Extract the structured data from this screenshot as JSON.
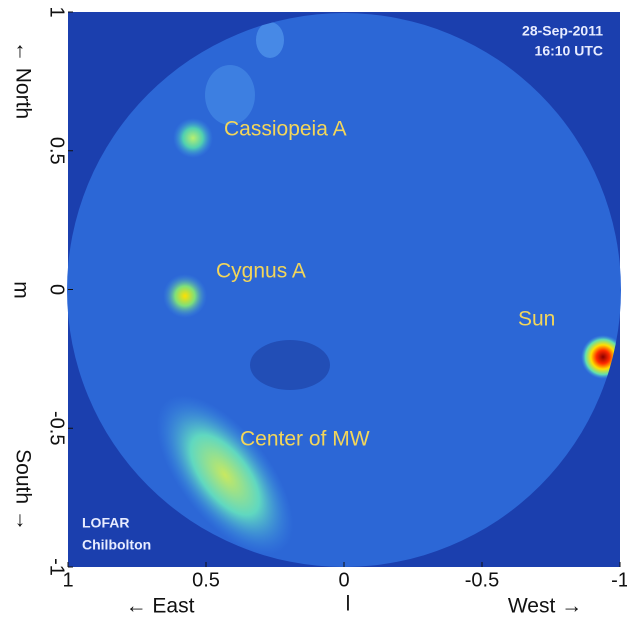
{
  "chart_data": {
    "type": "image",
    "x_label": "l",
    "y_label": "m",
    "x_direction_labels": [
      "← East",
      "West →"
    ],
    "y_direction_labels": [
      "← North",
      "South →"
    ],
    "xlim": [
      1,
      -1
    ],
    "ylim": [
      -1,
      1
    ],
    "xticks": [
      1,
      0.5,
      0,
      -0.5,
      -1
    ],
    "yticks": [
      1,
      0.5,
      0,
      -0.5,
      -1
    ],
    "annotations": [
      "28-Sep-2011",
      "16:10 UTC",
      "LOFAR",
      "Chilbolton",
      "Cassiopeia A",
      "Cygnus A",
      "Sun",
      "Center of MW"
    ]
  }
}
